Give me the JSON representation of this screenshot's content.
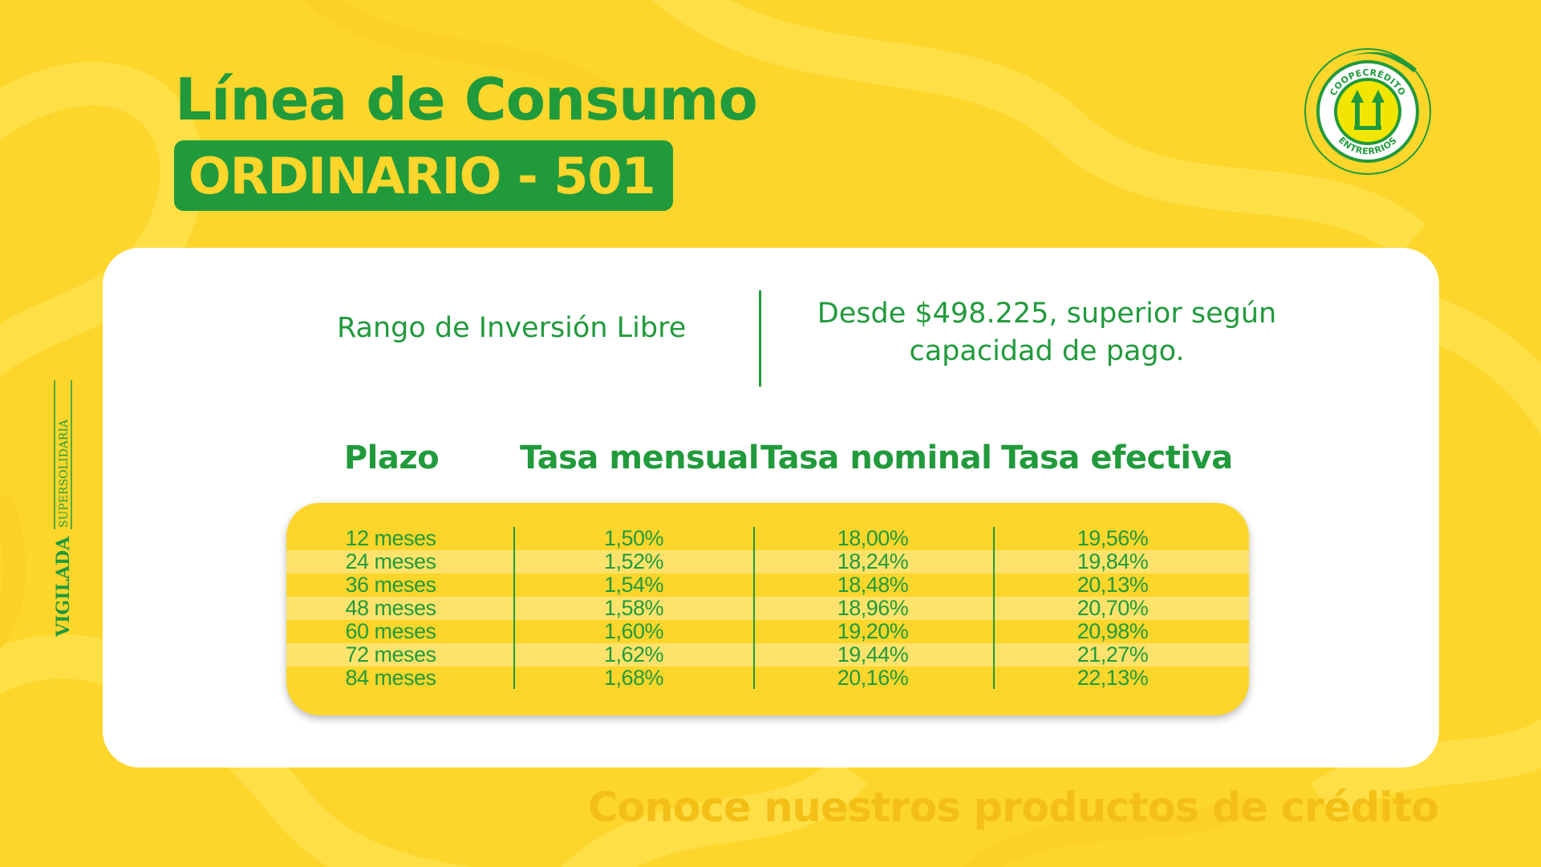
{
  "title": "Línea de Consumo",
  "badge": "ORDINARIO - 501",
  "logo": {
    "top_text": "COOPECRÉDITO",
    "bottom_text": "ENTRERRIOS",
    "icon": "double-arrow-up-logo"
  },
  "vigilada": {
    "bold": "VIGILADA",
    "small": "SUPERSOLIDARIA"
  },
  "range": {
    "label": "Rango de Inversión Libre",
    "value_line1": "Desde $498.225, superior según",
    "value_line2": "capacidad de pago."
  },
  "table": {
    "headers": [
      "Plazo",
      "Tasa mensual",
      "Tasa nominal",
      "Tasa efectiva"
    ],
    "rows": [
      [
        "12 meses",
        "1,50%",
        "18,00%",
        "19,56%"
      ],
      [
        "24 meses",
        "1,52%",
        "18,24%",
        "19,84%"
      ],
      [
        "36 meses",
        "1,54%",
        "18,48%",
        "20,13%"
      ],
      [
        "48 meses",
        "1,58%",
        "18,96%",
        "20,70%"
      ],
      [
        "60 meses",
        "1,60%",
        "19,20%",
        "20,98%"
      ],
      [
        "72 meses",
        "1,62%",
        "19,44%",
        "21,27%"
      ],
      [
        "84 meses",
        "1,68%",
        "20,16%",
        "22,13%"
      ]
    ]
  },
  "footer": "Conoce nuestros productos de crédito",
  "colors": {
    "background": "#fdd62b",
    "green": "#219a3c",
    "stripe": "#fde36b",
    "footer": "#f3bf16"
  }
}
